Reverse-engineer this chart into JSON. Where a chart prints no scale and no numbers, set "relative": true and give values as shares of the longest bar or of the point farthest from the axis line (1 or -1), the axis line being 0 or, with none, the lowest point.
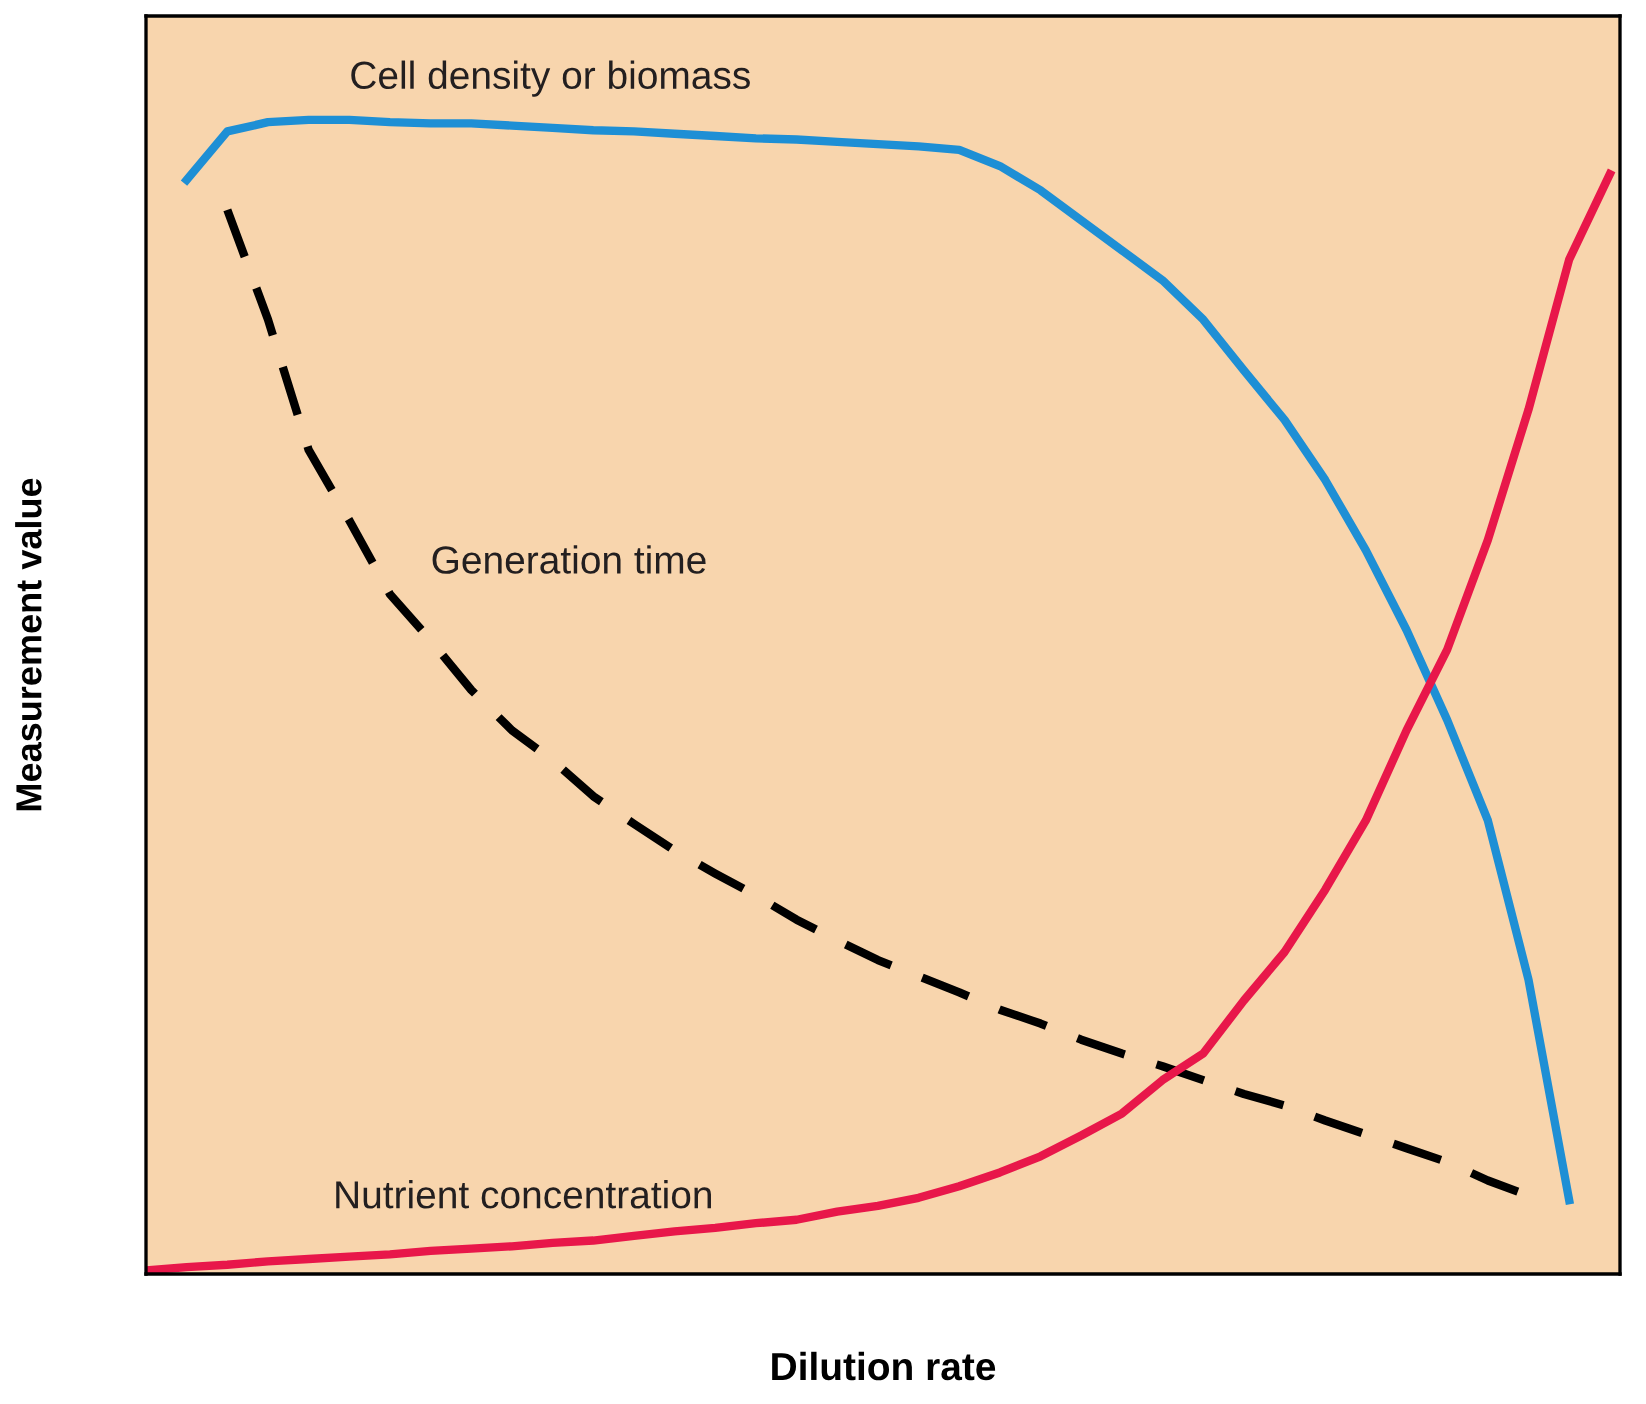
{
  "chart_data": {
    "type": "line",
    "relative": true,
    "xlabel": "Dilution rate",
    "ylabel": "Measurement value",
    "tick_labels": false,
    "legend": false,
    "marker": "none",
    "categories": [
      null,
      null,
      null,
      null,
      null,
      null,
      null,
      null,
      null,
      null,
      null,
      null,
      null,
      null,
      null,
      null,
      null,
      null,
      null,
      null,
      null,
      null,
      null,
      null,
      null,
      null,
      null,
      null,
      null,
      null,
      null,
      null,
      null,
      null,
      null,
      null,
      null
    ],
    "series": [
      {
        "name": "Cell density or biomass",
        "color": "#1e8fd5",
        "line_style": "solid",
        "values": [
          null,
          0.948,
          0.99,
          0.998,
          1.0,
          1.0,
          0.998,
          0.997,
          0.997,
          0.995,
          0.993,
          0.991,
          0.99,
          0.988,
          0.986,
          0.984,
          0.983,
          0.981,
          0.979,
          0.977,
          0.974,
          0.96,
          0.939,
          0.913,
          0.887,
          0.861,
          0.827,
          0.783,
          0.74,
          0.688,
          0.627,
          0.558,
          0.48,
          0.393,
          0.255,
          0.064,
          null
        ]
      },
      {
        "name": "Generation time",
        "color": "#000000",
        "line_style": "dashed",
        "values": [
          null,
          null,
          0.922,
          0.827,
          0.714,
          0.653,
          0.589,
          0.549,
          0.506,
          0.471,
          0.445,
          0.414,
          0.39,
          0.367,
          0.347,
          0.328,
          0.307,
          0.289,
          0.272,
          0.258,
          0.244,
          0.229,
          0.217,
          0.203,
          0.191,
          0.18,
          0.168,
          0.156,
          0.146,
          0.133,
          0.121,
          0.109,
          0.097,
          0.081,
          0.068,
          null,
          null
        ]
      },
      {
        "name": "Nutrient concentration",
        "color": "#e8174a",
        "line_style": "solid",
        "values": [
          0.003,
          0.006,
          0.008,
          0.011,
          0.013,
          0.015,
          0.017,
          0.02,
          0.022,
          0.024,
          0.027,
          0.029,
          0.033,
          0.037,
          0.04,
          0.044,
          0.047,
          0.054,
          0.059,
          0.066,
          0.076,
          0.088,
          0.102,
          0.12,
          0.139,
          0.168,
          0.191,
          0.237,
          0.279,
          0.333,
          0.393,
          0.471,
          0.541,
          0.636,
          0.749,
          0.879,
          0.953
        ]
      }
    ]
  }
}
